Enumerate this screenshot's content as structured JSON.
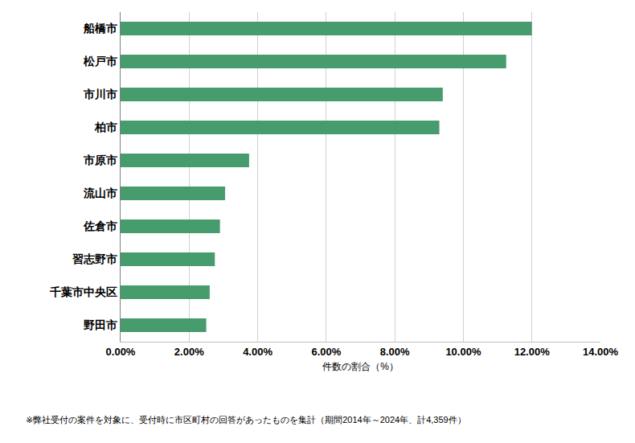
{
  "chart_data": {
    "type": "bar",
    "orientation": "horizontal",
    "categories": [
      "船橋市",
      "松戸市",
      "市川市",
      "柏市",
      "市原市",
      "流山市",
      "佐倉市",
      "習志野市",
      "千葉市中央区",
      "野田市"
    ],
    "values": [
      12.0,
      11.25,
      9.4,
      9.3,
      3.75,
      3.05,
      2.9,
      2.75,
      2.6,
      2.5
    ],
    "color": "#469c6d",
    "x_label": "件数の割合（%）",
    "xlim": [
      0,
      14
    ],
    "xticks": [
      {
        "value": 0,
        "label": "0.00%"
      },
      {
        "value": 2,
        "label": "2.00%"
      },
      {
        "value": 4,
        "label": "4.00%"
      },
      {
        "value": 6,
        "label": "6.00%"
      },
      {
        "value": 8,
        "label": "8.00%"
      },
      {
        "value": 10,
        "label": "10.00%"
      },
      {
        "value": 12,
        "label": "12.00%"
      },
      {
        "value": 14,
        "label": "14.00%"
      }
    ],
    "grid": true,
    "annotations": [
      "※弊社受付の案件を対象に、受付時に市区町村の回答があったものを集計（期間2014年～2024年、計4,359件）"
    ]
  }
}
